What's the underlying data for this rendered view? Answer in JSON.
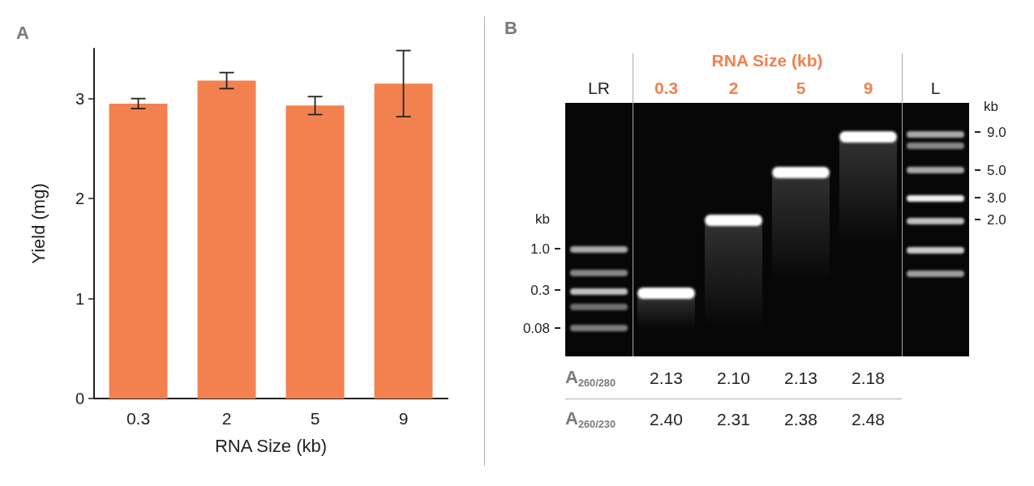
{
  "chart_data": [
    {
      "type": "bar",
      "title": "A",
      "categories": [
        "0.3",
        "2",
        "5",
        "9"
      ],
      "values": [
        2.95,
        3.18,
        2.93,
        3.15
      ],
      "errors": [
        0.05,
        0.08,
        0.09,
        0.33
      ],
      "color": "#f3814f",
      "xlabel": "RNA Size (kb)",
      "ylabel": "Yield (mg)",
      "ylim": [
        0,
        3.5
      ],
      "yticks": [
        0,
        1,
        2,
        3
      ]
    },
    {
      "type": "other",
      "title": "B",
      "xlabel": "RNA Size (kb)",
      "categories": [
        "LR",
        "0.3",
        "2",
        "5",
        "9",
        "L"
      ],
      "series": [
        {
          "name": "A$_{260/280}$",
          "values": [
            null,
            2.13,
            2.1,
            2.13,
            2.18,
            null
          ],
          "value_labels": [
            null,
            "2.13",
            "2.10",
            "2.13",
            "2.18",
            null
          ]
        },
        {
          "name": "A$_{260/230}$",
          "values": [
            null,
            2.4,
            2.31,
            2.38,
            2.48,
            null
          ],
          "value_labels": [
            null,
            "2.40",
            "2.31",
            "2.38",
            "2.48",
            null
          ]
        }
      ],
      "annotations": [
        {
          "text": "kb",
          "x": "LR"
        },
        {
          "text": "1.0",
          "x": "LR"
        },
        {
          "text": "0.3",
          "x": "LR"
        },
        {
          "text": "0.08",
          "x": "LR"
        },
        {
          "text": "kb",
          "x": "L"
        },
        {
          "text": "9.0",
          "x": "L"
        },
        {
          "text": "5.0",
          "x": "L"
        },
        {
          "text": "3.0",
          "x": "L"
        },
        {
          "text": "2.0",
          "x": "L"
        }
      ]
    }
  ]
}
